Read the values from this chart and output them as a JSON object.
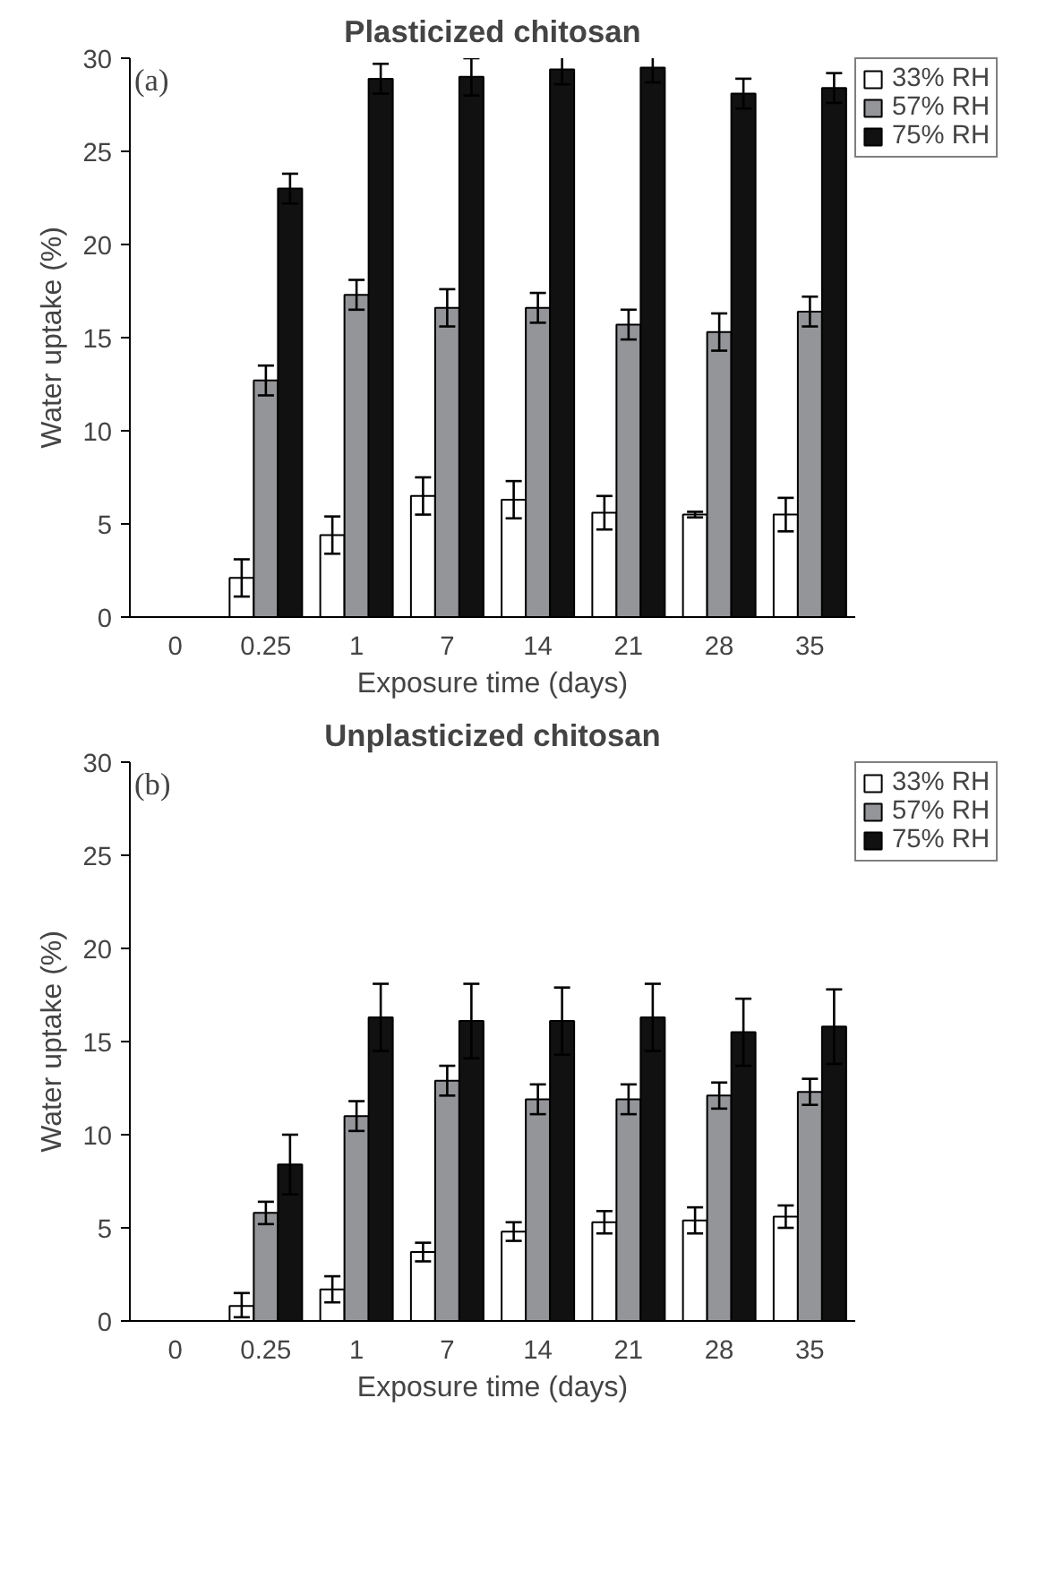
{
  "chart_data": [
    {
      "type": "bar",
      "title": "Plasticized chitosan",
      "xlabel": "Exposure time (days)",
      "ylabel": "Water uptake (%)",
      "annotations": [
        "(a)"
      ],
      "categories": [
        "0",
        "0.25",
        "1",
        "7",
        "14",
        "21",
        "28",
        "35"
      ],
      "ylim": [
        0,
        30
      ],
      "yticks": [
        0,
        5,
        10,
        15,
        20,
        25,
        30
      ],
      "grid": false,
      "legend": "top right",
      "series": [
        {
          "name": "33% RH",
          "color": "#ffffff",
          "values": [
            null,
            2.1,
            4.4,
            6.5,
            6.3,
            5.6,
            5.5,
            5.5
          ],
          "errors": [
            null,
            1.0,
            1.0,
            1.0,
            1.0,
            0.9,
            0.15,
            0.9
          ]
        },
        {
          "name": "57% RH",
          "color": "#939598",
          "values": [
            null,
            12.7,
            17.3,
            16.6,
            16.6,
            15.7,
            15.3,
            16.4
          ],
          "errors": [
            null,
            0.8,
            0.8,
            1.0,
            0.8,
            0.8,
            1.0,
            0.8
          ]
        },
        {
          "name": "75% RH",
          "color": "#111111",
          "values": [
            null,
            23.0,
            28.9,
            29.0,
            29.4,
            29.5,
            28.1,
            28.4
          ],
          "errors": [
            null,
            0.8,
            0.8,
            1.0,
            0.8,
            0.8,
            0.8,
            0.8
          ]
        }
      ]
    },
    {
      "type": "bar",
      "title": "Unplasticized chitosan",
      "xlabel": "Exposure time (days)",
      "ylabel": "Water uptake (%)",
      "annotations": [
        "(b)"
      ],
      "categories": [
        "0",
        "0.25",
        "1",
        "7",
        "14",
        "21",
        "28",
        "35"
      ],
      "ylim": [
        0,
        30
      ],
      "yticks": [
        0,
        5,
        10,
        15,
        20,
        25,
        30
      ],
      "grid": false,
      "legend": "top right",
      "series": [
        {
          "name": "33% RH",
          "color": "#ffffff",
          "values": [
            null,
            0.8,
            1.7,
            3.7,
            4.8,
            5.3,
            5.4,
            5.6
          ],
          "errors": [
            null,
            [
              0.2,
              1.5
            ],
            0.7,
            0.5,
            0.5,
            0.6,
            0.7,
            0.6
          ]
        },
        {
          "name": "57% RH",
          "color": "#939598",
          "values": [
            null,
            5.8,
            11.0,
            12.9,
            11.9,
            11.9,
            12.1,
            12.3
          ],
          "errors": [
            null,
            0.6,
            0.8,
            0.8,
            0.8,
            0.8,
            0.7,
            0.7
          ]
        },
        {
          "name": "75% RH",
          "color": "#111111",
          "values": [
            null,
            8.4,
            16.3,
            16.1,
            16.1,
            16.3,
            15.5,
            15.8
          ],
          "errors": [
            null,
            1.6,
            1.8,
            2.0,
            1.8,
            1.8,
            1.8,
            2.0
          ]
        }
      ]
    }
  ]
}
